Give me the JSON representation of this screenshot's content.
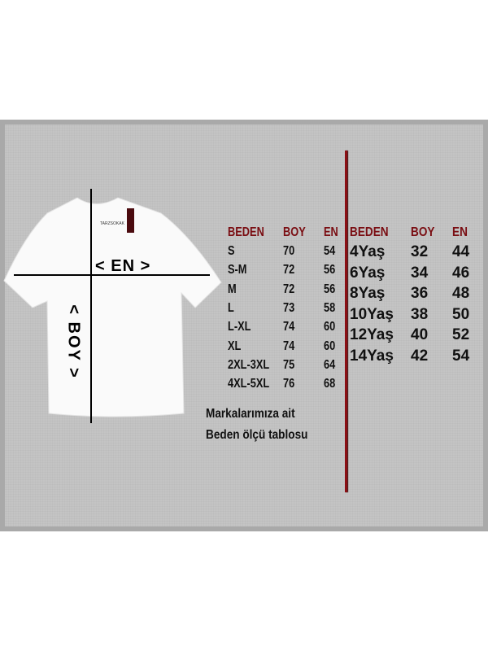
{
  "diagram": {
    "width_label": "< EN >",
    "length_label": "< BOY >",
    "brand_tag": "TARZSOKAK"
  },
  "adult_table": {
    "headers": [
      "BEDEN",
      "BOY",
      "EN"
    ],
    "rows": [
      [
        "S",
        "70",
        "54"
      ],
      [
        "S-M",
        "72",
        "56"
      ],
      [
        "M",
        "72",
        "56"
      ],
      [
        "L",
        "73",
        "58"
      ],
      [
        "L-XL",
        "74",
        "60"
      ],
      [
        "XL",
        "74",
        "60"
      ],
      [
        "2XL-3XL",
        "75",
        "64"
      ],
      [
        "4XL-5XL",
        "76",
        "68"
      ]
    ]
  },
  "kids_table": {
    "headers": [
      "BEDEN",
      "BOY",
      "EN"
    ],
    "rows": [
      [
        "4Yaş",
        "32",
        "44"
      ],
      [
        "6Yaş",
        "34",
        "46"
      ],
      [
        "8Yaş",
        "36",
        "48"
      ],
      [
        "10Yaş",
        "38",
        "50"
      ],
      [
        "12Yaş",
        "40",
        "52"
      ],
      [
        "14Yaş",
        "42",
        "54"
      ]
    ]
  },
  "note": {
    "line1": "Markalarımıza ait",
    "line2": "Beden ölçü tablosu"
  },
  "colors": {
    "header": "#7a0d12",
    "divider": "#8b0f14",
    "panel": "#c4c4c4"
  }
}
